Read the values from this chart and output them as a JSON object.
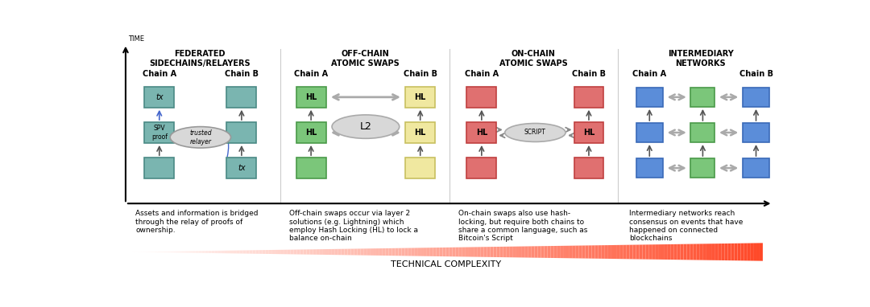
{
  "bg_color": "#ffffff",
  "teal_color": "#7ab5b0",
  "teal_border": "#4a8a85",
  "green_color": "#7bc67a",
  "green_border": "#4a9a49",
  "red_color": "#e07070",
  "red_border": "#c04040",
  "blue_color": "#5b8dd9",
  "blue_border": "#3a6ab8",
  "yellow_color": "#f0e8a0",
  "yellow_border": "#c8c060",
  "gray_ellipse": "#d0d0d0",
  "gray_border": "#aaaaaa",
  "arrow_gray": "#888888",
  "complexity_label": "TECHNICAL COMPLEXITY",
  "time_label": "TIME",
  "s1_title": "FEDERATED\nSIDECHAINS/RELAYERS",
  "s2_title": "OFF-CHAIN\nATOMIC SWAPS",
  "s3_title": "ON-CHAIN\nATOMIC SWAPS",
  "s4_title": "INTERMEDIARY\nNETWORKS",
  "desc1": "Assets and information is bridged\nthrough the relay of proofs of\nownership.",
  "desc2": "Off-chain swaps occur via layer 2\nsolutions (e.g. Lightning) which\nemploy Hash Locking (HL) to lock a\nbalance on-chain",
  "desc3": "On-chain swaps also use hash-\nlocking, but require both chains to\nshare a common language, such as\nBitcoin's Script",
  "desc4": "Intermediary networks reach\nconsensus on events that have\nhappened on connected\nblockchains"
}
